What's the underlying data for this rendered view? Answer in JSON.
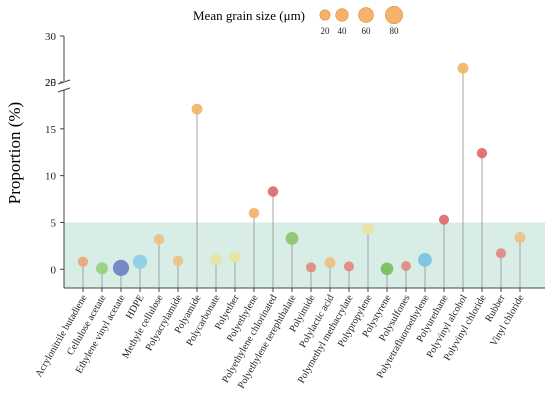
{
  "chart_data": {
    "type": "scatter",
    "subtype": "lollipop-bubble",
    "title": "",
    "xlabel": "",
    "ylabel": "Proportion (%)",
    "axis_break": {
      "lower_max": 20,
      "upper_min": 25
    },
    "ylim": [
      -2,
      30
    ],
    "yticks": [
      0,
      5,
      10,
      15,
      20,
      25,
      30
    ],
    "shaded_band": {
      "from": -2,
      "to": 5,
      "color": "#d8ede6"
    },
    "size_legend": {
      "title": "Mean grain size (μm)",
      "values": [
        20,
        40,
        60,
        80
      ],
      "color": "#f5b26b",
      "placement": "top"
    },
    "points": [
      {
        "category": "Acrylonitrile butadiene",
        "value": 0.8,
        "size": 20,
        "color": "#e8a977"
      },
      {
        "category": "Cellulose acetate",
        "value": 0.1,
        "size": 35,
        "color": "#98d07c"
      },
      {
        "category": "Ethylene vinyl acetate",
        "value": 0.15,
        "size": 70,
        "color": "#6b82c3"
      },
      {
        "category": "HDPE",
        "value": 0.8,
        "size": 55,
        "color": "#8ecde7"
      },
      {
        "category": "Methyle cellulose",
        "value": 3.2,
        "size": 22,
        "color": "#edbf84"
      },
      {
        "category": "Polyacrylamide",
        "value": 0.9,
        "size": 20,
        "color": "#edbf84"
      },
      {
        "category": "Polyamide",
        "value": 17.1,
        "size": 25,
        "color": "#f1b564"
      },
      {
        "category": "Polycarbonate",
        "value": 1.0,
        "size": 28,
        "color": "#e7e3a2"
      },
      {
        "category": "Polyether",
        "value": 1.3,
        "size": 30,
        "color": "#e7e3a2"
      },
      {
        "category": "Polyethylene",
        "value": 6.0,
        "size": 22,
        "color": "#f5b26b"
      },
      {
        "category": "Polyethylene chlorinated",
        "value": 8.3,
        "size": 22,
        "color": "#e06a6a"
      },
      {
        "category": "Polyethylene terephthalate",
        "value": 3.3,
        "size": 40,
        "color": "#8bc46a"
      },
      {
        "category": "Polyimide",
        "value": 0.2,
        "size": 18,
        "color": "#e28a7e"
      },
      {
        "category": "Polylactic acid",
        "value": 0.7,
        "size": 25,
        "color": "#edbf84"
      },
      {
        "category": "Polymethyl methacrylate",
        "value": 0.3,
        "size": 18,
        "color": "#e28a7e"
      },
      {
        "category": "Polypropylene",
        "value": 4.3,
        "size": 30,
        "color": "#e7e3a2"
      },
      {
        "category": "Polystyrene",
        "value": 0.05,
        "size": 40,
        "color": "#77bd5a"
      },
      {
        "category": "Polysulfones",
        "value": 0.35,
        "size": 15,
        "color": "#e28a7e"
      },
      {
        "category": "Polytetrafluoroethylene",
        "value": 1.0,
        "size": 50,
        "color": "#78c2e3"
      },
      {
        "category": "Polyurethane",
        "value": 5.3,
        "size": 18,
        "color": "#e06a6a"
      },
      {
        "category": "Polyvinyl alcohol",
        "value": 26.5,
        "size": 25,
        "color": "#f1b564"
      },
      {
        "category": "Polyvinyl chloride",
        "value": 12.4,
        "size": 20,
        "color": "#e06a6a"
      },
      {
        "category": "Rubber",
        "value": 1.7,
        "size": 18,
        "color": "#e28a7e"
      },
      {
        "category": "Vinyl chloride",
        "value": 3.4,
        "size": 25,
        "color": "#edbf84"
      }
    ]
  }
}
